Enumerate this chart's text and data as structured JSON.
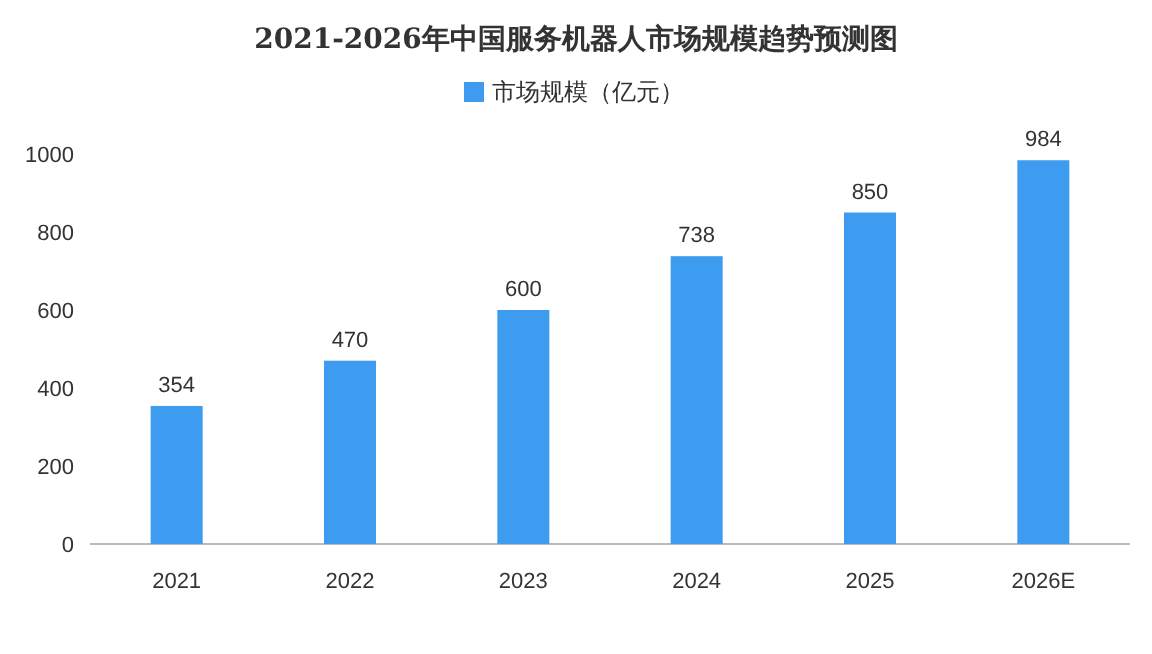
{
  "chart_data": {
    "type": "bar",
    "title": "2021-2026年中国服务机器人市场规模趋势预测图",
    "categories": [
      "2021",
      "2022",
      "2023",
      "2024",
      "2025",
      "2026E"
    ],
    "series": [
      {
        "name": "市场规模（亿元）",
        "color": "#3d9cf0",
        "values": [
          354,
          470,
          600,
          738,
          850,
          984
        ]
      }
    ],
    "ylim": [
      0,
      1000
    ],
    "yticks": [
      0,
      200,
      400,
      600,
      800,
      1000
    ],
    "data_labels": true,
    "legend": "top",
    "grid": false
  }
}
